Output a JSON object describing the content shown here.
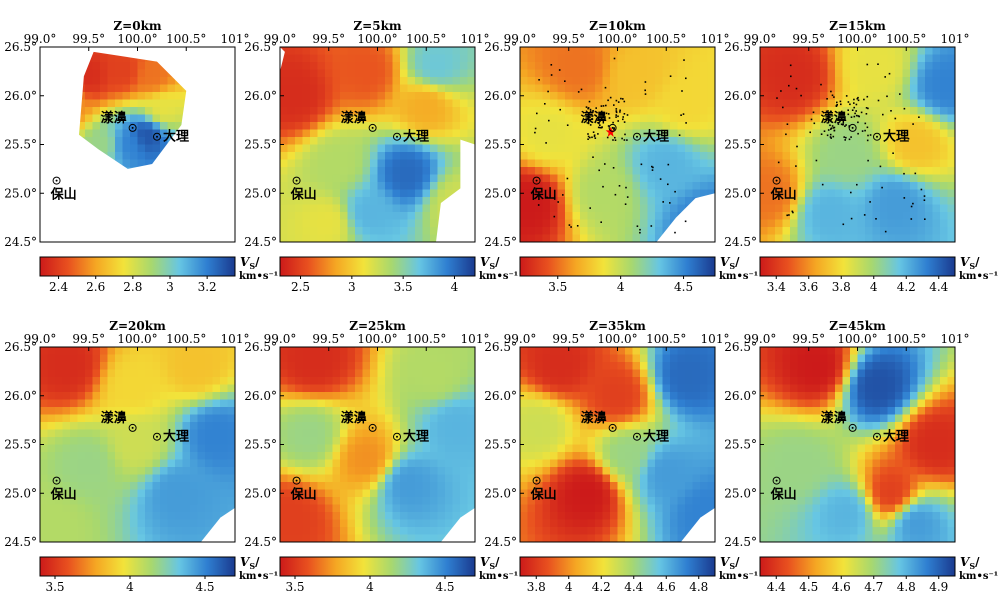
{
  "chart_data": {
    "type": "heatmap",
    "longitude_ticks": [
      "99.0°",
      "99.5°",
      "100.0°",
      "100.5°",
      "101°"
    ],
    "latitude_ticks": [
      "26.5°",
      "26.0°",
      "25.5°",
      "25.0°",
      "24.5°"
    ],
    "lon_range": [
      99.0,
      101.0
    ],
    "lat_range": [
      24.5,
      26.5
    ],
    "colormap": [
      "#cc1a1a",
      "#e8501f",
      "#f5a623",
      "#f2e33a",
      "#a8d86e",
      "#67c6e3",
      "#2f7fd1",
      "#1a3a8f"
    ],
    "colorbar_label": "V",
    "colorbar_label_sub": "S",
    "colorbar_label_tail": "/",
    "colorbar_unit": "km•s⁻¹",
    "cities": [
      {
        "name": "漾濞",
        "lon": 99.95,
        "lat": 25.67
      },
      {
        "name": "大理",
        "lon": 100.2,
        "lat": 25.58
      },
      {
        "name": "保山",
        "lon": 99.17,
        "lat": 25.13
      }
    ],
    "panels": [
      {
        "title": "Z=0km",
        "cbar_ticks": [
          "2.4",
          "2.6",
          "2.8",
          "3",
          "3.2"
        ],
        "vmin": 2.3,
        "vmax": 3.35,
        "tick_values": [
          2.4,
          2.6,
          2.8,
          3.0,
          3.2
        ],
        "show_lon": true,
        "show_lat": true,
        "blobs": [
          [
            99.5,
            26.2,
            0.05
          ],
          [
            99.3,
            25.9,
            0.25
          ],
          [
            99.85,
            26.25,
            0.1
          ],
          [
            100.15,
            26.2,
            0.2
          ],
          [
            100.25,
            25.85,
            0.45
          ],
          [
            99.9,
            25.5,
            0.85
          ],
          [
            100.1,
            25.6,
            0.95
          ],
          [
            99.65,
            25.5,
            0.6
          ]
        ]
      },
      {
        "title": "Z=5km",
        "cbar_ticks": [
          "2.5",
          "3",
          "3.5",
          "4"
        ],
        "vmin": 2.3,
        "vmax": 4.2,
        "tick_values": [
          2.5,
          3.0,
          3.5,
          4.0
        ],
        "show_lon": true,
        "show_lat": true,
        "blobs": [
          [
            99.15,
            26.0,
            0.05
          ],
          [
            99.9,
            26.25,
            0.15
          ],
          [
            100.5,
            25.9,
            0.3
          ],
          [
            99.6,
            25.3,
            0.55
          ],
          [
            100.3,
            25.2,
            0.9
          ],
          [
            99.9,
            24.8,
            0.75
          ],
          [
            99.5,
            24.7,
            0.45
          ],
          [
            100.8,
            24.9,
            0.5
          ],
          [
            100.6,
            26.3,
            0.7
          ]
        ]
      },
      {
        "title": "Z=10km",
        "cbar_ticks": [
          "3.5",
          "4",
          "4.5"
        ],
        "vmin": 3.2,
        "vmax": 4.75,
        "tick_values": [
          3.5,
          4.0,
          4.5
        ],
        "show_lon": true,
        "show_lat": true,
        "blobs": [
          [
            99.1,
            24.9,
            0.0
          ],
          [
            99.6,
            26.3,
            0.2
          ],
          [
            100.2,
            26.2,
            0.35
          ],
          [
            100.5,
            25.3,
            0.75
          ],
          [
            99.85,
            25.0,
            0.55
          ],
          [
            100.7,
            25.9,
            0.4
          ],
          [
            99.3,
            25.6,
            0.45
          ],
          [
            100.9,
            24.7,
            0.85
          ]
        ]
      },
      {
        "title": "Z=15km",
        "cbar_ticks": [
          "3.4",
          "3.6",
          "3.8",
          "4",
          "4.2",
          "4.4"
        ],
        "vmin": 3.3,
        "vmax": 4.5,
        "tick_values": [
          3.4,
          3.6,
          3.8,
          4.0,
          4.2,
          4.4
        ],
        "show_lon": true,
        "show_lat": true,
        "blobs": [
          [
            99.35,
            26.2,
            0.05
          ],
          [
            99.1,
            25.0,
            0.2
          ],
          [
            100.2,
            26.3,
            0.45
          ],
          [
            100.6,
            25.5,
            0.35
          ],
          [
            99.7,
            24.8,
            0.75
          ],
          [
            100.4,
            24.9,
            0.8
          ],
          [
            99.9,
            25.4,
            0.6
          ],
          [
            100.9,
            26.1,
            0.85
          ]
        ]
      },
      {
        "title": "Z=20km",
        "cbar_ticks": [
          "3.5",
          "4",
          "4.5"
        ],
        "vmin": 3.4,
        "vmax": 4.7,
        "tick_values": [
          3.5,
          4.0,
          4.5
        ],
        "show_lon": true,
        "show_lat": true,
        "blobs": [
          [
            99.3,
            26.3,
            0.05
          ],
          [
            99.95,
            26.1,
            0.4
          ],
          [
            100.6,
            26.3,
            0.35
          ],
          [
            99.5,
            25.3,
            0.6
          ],
          [
            100.4,
            25.0,
            0.8
          ],
          [
            100.0,
            25.5,
            0.5
          ],
          [
            99.1,
            24.7,
            0.55
          ],
          [
            100.8,
            25.6,
            0.85
          ]
        ]
      },
      {
        "title": "Z=25km",
        "cbar_ticks": [
          "3.5",
          "4",
          "4.5"
        ],
        "vmin": 3.4,
        "vmax": 4.7,
        "tick_values": [
          3.5,
          4.0,
          4.5
        ],
        "show_lon": true,
        "show_lat": true,
        "blobs": [
          [
            99.35,
            26.35,
            0.05
          ],
          [
            99.1,
            24.75,
            0.1
          ],
          [
            99.9,
            25.35,
            0.25
          ],
          [
            100.6,
            26.2,
            0.55
          ],
          [
            100.3,
            25.1,
            0.8
          ],
          [
            99.3,
            25.6,
            0.6
          ],
          [
            100.8,
            25.7,
            0.75
          ]
        ]
      },
      {
        "title": "Z=35km",
        "cbar_ticks": [
          "3.8",
          "4",
          "4.2",
          "4.4",
          "4.6",
          "4.8"
        ],
        "vmin": 3.7,
        "vmax": 4.9,
        "tick_values": [
          3.8,
          4.0,
          4.2,
          4.4,
          4.6,
          4.8
        ],
        "show_lon": true,
        "show_lat": true,
        "blobs": [
          [
            99.4,
            26.3,
            0.05
          ],
          [
            99.7,
            25.0,
            0.0
          ],
          [
            100.0,
            26.0,
            0.1
          ],
          [
            100.7,
            26.2,
            0.9
          ],
          [
            100.5,
            25.2,
            0.8
          ],
          [
            99.2,
            25.7,
            0.5
          ],
          [
            100.1,
            25.4,
            0.6
          ],
          [
            100.9,
            24.8,
            0.85
          ]
        ]
      },
      {
        "title": "Z=45km",
        "cbar_ticks": [
          "4.4",
          "4.5",
          "4.6",
          "4.7",
          "4.8",
          "4.9"
        ],
        "vmin": 4.35,
        "vmax": 4.95,
        "tick_values": [
          4.4,
          4.5,
          4.6,
          4.7,
          4.8,
          4.9
        ],
        "show_lon": true,
        "show_lat": true,
        "blobs": [
          [
            99.6,
            26.3,
            0.0
          ],
          [
            100.8,
            25.5,
            0.05
          ],
          [
            100.35,
            25.0,
            0.1
          ],
          [
            100.2,
            26.1,
            0.95
          ],
          [
            99.4,
            25.3,
            0.6
          ],
          [
            100.6,
            24.7,
            0.8
          ],
          [
            99.9,
            24.8,
            0.75
          ]
        ]
      }
    ]
  }
}
